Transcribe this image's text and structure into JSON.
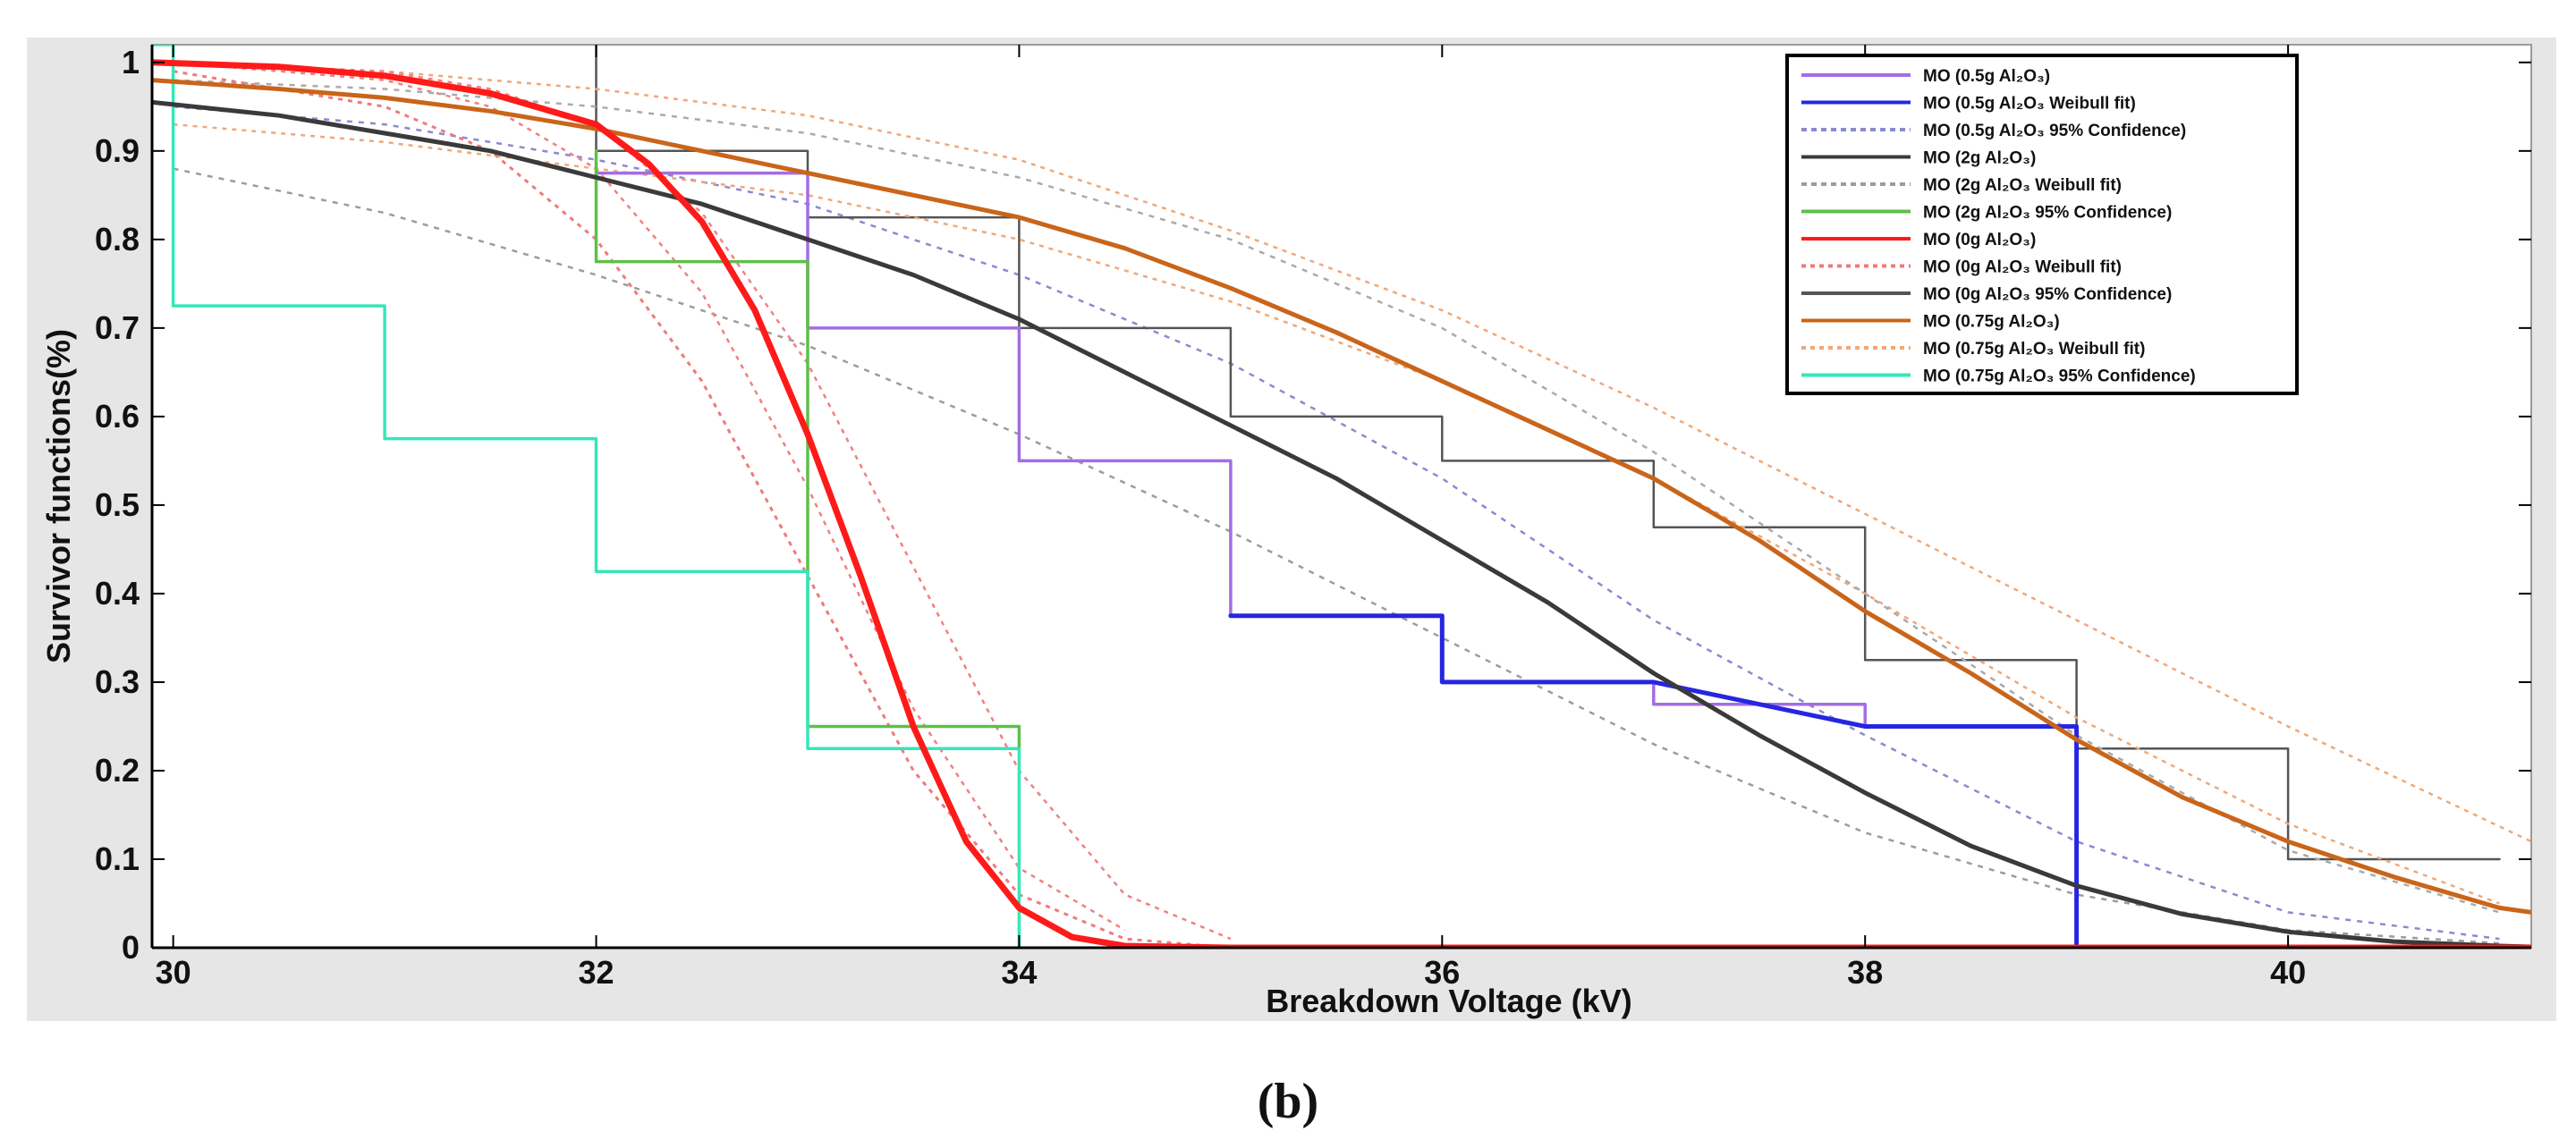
{
  "caption": "(b)",
  "chart_data": {
    "type": "line",
    "title": "",
    "xlabel": "Breakdown Voltage (kV)",
    "ylabel": "Survivor functions(%)",
    "xlim": [
      29.9,
      41.15
    ],
    "ylim": [
      0,
      1.02
    ],
    "xticks": [
      30,
      32,
      34,
      36,
      38,
      40
    ],
    "yticks": [
      0,
      0.1,
      0.2,
      0.3,
      0.4,
      0.5,
      0.6,
      0.7,
      0.8,
      0.9,
      1
    ],
    "ytick_labels": [
      "0",
      "0.1",
      "0.2",
      "0.3",
      "0.4",
      "0.5",
      "0.6",
      "0.7",
      "0.8",
      "0.9",
      "1"
    ],
    "grid": false,
    "legend_position": "top-right",
    "series": [
      {
        "name": "MO (0.5g Al₂O₃)",
        "style": "step",
        "color": "#a46de3",
        "width": 3.5,
        "dash": "",
        "x": [
          32,
          33,
          33,
          34,
          34,
          35,
          35,
          36,
          36,
          37,
          37,
          38,
          38,
          39,
          39
        ],
        "y": [
          0.875,
          0.875,
          0.7,
          0.7,
          0.55,
          0.55,
          0.375,
          0.375,
          0.3,
          0.3,
          0.275,
          0.275,
          0.25,
          0.25,
          0
        ]
      },
      {
        "name": "MO (0.5g Al₂O₃ Weibull fit)",
        "style": "step",
        "color": "#2626e0",
        "width": 5,
        "dash": "",
        "x": [
          35,
          36,
          36,
          37,
          38,
          39,
          39
        ],
        "y": [
          0.375,
          0.375,
          0.3,
          0.3,
          0.25,
          0.25,
          0
        ]
      },
      {
        "name": "MO (0.5g Al₂O₃ 95% Confidence)",
        "style": "curve",
        "color": "#8a8ad0",
        "width": 2.5,
        "dash": "6 7",
        "x": [
          30,
          31,
          32,
          33,
          34,
          35,
          36,
          37,
          38,
          39,
          40,
          41
        ],
        "y": [
          0.95,
          0.93,
          0.89,
          0.84,
          0.76,
          0.66,
          0.53,
          0.37,
          0.24,
          0.12,
          0.04,
          0.01
        ]
      },
      {
        "name": "MO (2g Al₂O₃)",
        "style": "curve",
        "color": "#3a3a3a",
        "width": 5,
        "dash": "",
        "x": [
          29.9,
          30.5,
          31,
          31.5,
          32,
          32.5,
          33,
          33.5,
          34,
          34.5,
          35,
          35.5,
          36,
          36.5,
          37,
          37.5,
          38,
          38.5,
          39,
          39.5,
          40,
          40.5,
          41,
          41.15
        ],
        "y": [
          0.955,
          0.94,
          0.92,
          0.9,
          0.87,
          0.84,
          0.8,
          0.76,
          0.71,
          0.65,
          0.59,
          0.53,
          0.46,
          0.39,
          0.31,
          0.24,
          0.175,
          0.115,
          0.07,
          0.038,
          0.018,
          0.007,
          0.002,
          0.001
        ]
      },
      {
        "name": "MO (2g Al₂O₃ Weibull fit)",
        "style": "curve",
        "color": "#9c9c9c",
        "width": 2.5,
        "dash": "6 7",
        "x": [
          30,
          31,
          32,
          33,
          34,
          35,
          36,
          37,
          38,
          39,
          40,
          41
        ],
        "y": [
          0.88,
          0.83,
          0.76,
          0.68,
          0.58,
          0.47,
          0.35,
          0.23,
          0.13,
          0.06,
          0.02,
          0.005
        ]
      },
      {
        "name": "MO (2g Al₂O₃ 95% Confidence)",
        "style": "step",
        "color": "#5fbf4a",
        "width": 3.5,
        "dash": "",
        "x": [
          32,
          32,
          33,
          33,
          34,
          34
        ],
        "y": [
          0.9,
          0.775,
          0.775,
          0.25,
          0.25,
          0.225
        ]
      },
      {
        "name": "MO (0g Al₂O₃)",
        "style": "curve",
        "color": "#ff1a1a",
        "width": 7,
        "dash": "",
        "x": [
          29.9,
          30.5,
          31,
          31.5,
          32,
          32.25,
          32.5,
          32.75,
          33,
          33.25,
          33.5,
          33.75,
          34,
          34.25,
          34.5,
          35,
          36,
          37,
          38,
          39,
          40,
          41.15
        ],
        "y": [
          1.0,
          0.995,
          0.985,
          0.965,
          0.93,
          0.885,
          0.82,
          0.72,
          0.58,
          0.42,
          0.25,
          0.12,
          0.045,
          0.012,
          0.002,
          0,
          0,
          0,
          0,
          0,
          0,
          0
        ]
      },
      {
        "name": "MO (0g Al₂O₃ Weibull fit)",
        "style": "curve",
        "color": "#f07a7a",
        "width": 3,
        "dash": "5 6",
        "x": [
          30,
          31,
          31.5,
          32,
          32.5,
          33,
          33.5,
          34,
          34.5,
          35
        ],
        "y": [
          0.99,
          0.95,
          0.9,
          0.8,
          0.64,
          0.42,
          0.2,
          0.06,
          0.01,
          0
        ]
      },
      {
        "name": "MO (0g Al₂O₃ 95% Confidence)",
        "style": "step",
        "color": "#555555",
        "width": 2.5,
        "dash": "",
        "x": [
          32,
          32,
          33,
          33,
          34,
          34,
          35,
          35,
          36,
          36,
          37,
          37,
          38,
          38,
          39,
          39,
          40,
          40,
          41
        ],
        "y": [
          1.02,
          0.9,
          0.9,
          0.825,
          0.825,
          0.7,
          0.7,
          0.6,
          0.6,
          0.55,
          0.55,
          0.475,
          0.475,
          0.325,
          0.325,
          0.225,
          0.225,
          0.1,
          0.1
        ]
      },
      {
        "name": "MO (0.75g Al₂O₃)",
        "style": "curve",
        "color": "#c9651a",
        "width": 5,
        "dash": "",
        "x": [
          29.9,
          30.5,
          31,
          31.5,
          32,
          32.5,
          33,
          33.5,
          34,
          34.5,
          35,
          35.5,
          36,
          36.5,
          37,
          37.5,
          38,
          38.5,
          39,
          39.5,
          40,
          40.5,
          41,
          41.15
        ],
        "y": [
          0.98,
          0.97,
          0.96,
          0.945,
          0.925,
          0.9,
          0.875,
          0.85,
          0.825,
          0.79,
          0.745,
          0.695,
          0.64,
          0.585,
          0.53,
          0.46,
          0.38,
          0.31,
          0.235,
          0.17,
          0.12,
          0.08,
          0.045,
          0.04
        ]
      },
      {
        "name": "MO (0.75g Al₂O₃ Weibull fit)",
        "style": "curve",
        "color": "#f0a878",
        "width": 2.5,
        "dash": "5 6",
        "x": [
          30,
          31,
          32,
          33,
          34,
          35,
          36,
          37,
          38,
          39,
          40,
          41.15
        ],
        "y": [
          1.0,
          0.99,
          0.97,
          0.94,
          0.89,
          0.81,
          0.72,
          0.61,
          0.49,
          0.37,
          0.25,
          0.12
        ]
      },
      {
        "name": "MO (0.75g Al₂O₃ 95% Confidence)",
        "style": "step",
        "color": "#36e6b8",
        "width": 3.5,
        "dash": "",
        "x": [
          29.9,
          30,
          30,
          31,
          31,
          32,
          32,
          33,
          33,
          34,
          34
        ],
        "y": [
          1.02,
          1.02,
          0.725,
          0.725,
          0.575,
          0.575,
          0.425,
          0.425,
          0.225,
          0.225,
          0
        ]
      },
      {
        "name": "",
        "style": "curve",
        "color": "#f08080",
        "width": 2.5,
        "dash": "5 6",
        "in_legend": false,
        "x": [
          30,
          31,
          31.5,
          32,
          32.5,
          33,
          33.5,
          34,
          34.5
        ],
        "y": [
          1.0,
          0.98,
          0.95,
          0.88,
          0.74,
          0.52,
          0.27,
          0.09,
          0.02
        ]
      },
      {
        "name": "",
        "style": "curve",
        "color": "#f08080",
        "width": 2.5,
        "dash": "5 6",
        "in_legend": false,
        "x": [
          30,
          31,
          31.5,
          32,
          32.5,
          33,
          33.5,
          34,
          34.5,
          35
        ],
        "y": [
          1.0,
          0.99,
          0.97,
          0.93,
          0.83,
          0.66,
          0.43,
          0.2,
          0.06,
          0.01
        ]
      },
      {
        "name": "",
        "style": "curve",
        "color": "#f0a878",
        "width": 2.5,
        "dash": "5 6",
        "in_legend": false,
        "x": [
          30,
          31,
          32,
          33,
          34,
          35,
          36,
          37,
          38,
          39,
          40,
          41
        ],
        "y": [
          0.93,
          0.91,
          0.88,
          0.85,
          0.8,
          0.73,
          0.64,
          0.53,
          0.4,
          0.26,
          0.14,
          0.05
        ]
      },
      {
        "name": "",
        "style": "curve",
        "color": "#aaaaaa",
        "width": 2.5,
        "dash": "6 7",
        "in_legend": false,
        "x": [
          30,
          31,
          32,
          33,
          34,
          35,
          36,
          37,
          38,
          39,
          40,
          41
        ],
        "y": [
          0.98,
          0.97,
          0.95,
          0.92,
          0.87,
          0.8,
          0.7,
          0.56,
          0.4,
          0.24,
          0.11,
          0.04
        ]
      }
    ]
  },
  "legend": {
    "entries": [
      {
        "label": "MO (0.5g Al₂O₃)",
        "color": "#a46de3",
        "dash": ""
      },
      {
        "label": "MO (0.5g Al₂O₃ Weibull fit)",
        "color": "#2626e0",
        "dash": ""
      },
      {
        "label": "MO (0.5g Al₂O₃ 95% Confidence)",
        "color": "#8a8ad0",
        "dash": "6 5"
      },
      {
        "label": "MO (2g Al₂O₃)",
        "color": "#3a3a3a",
        "dash": ""
      },
      {
        "label": "MO (2g Al₂O₃ Weibull fit)",
        "color": "#9c9c9c",
        "dash": "6 5"
      },
      {
        "label": "MO (2g Al₂O₃ 95% Confidence)",
        "color": "#5fbf4a",
        "dash": ""
      },
      {
        "label": "MO (0g Al₂O₃)",
        "color": "#ff1a1a",
        "dash": ""
      },
      {
        "label": "MO (0g Al₂O₃ Weibull fit)",
        "color": "#f07a7a",
        "dash": "5 5"
      },
      {
        "label": "MO (0g Al₂O₃ 95% Confidence)",
        "color": "#555555",
        "dash": ""
      },
      {
        "label": "MO (0.75g Al₂O₃)",
        "color": "#c9651a",
        "dash": ""
      },
      {
        "label": "MO (0.75g Al₂O₃ Weibull fit)",
        "color": "#f0a878",
        "dash": "5 5"
      },
      {
        "label": "MO (0.75g Al₂O₃ 95% Confidence)",
        "color": "#36e6b8",
        "dash": ""
      }
    ]
  },
  "colors": {
    "figure_background": "#e6e6e6",
    "plot_background": "#ffffff",
    "axis": "#000000"
  }
}
